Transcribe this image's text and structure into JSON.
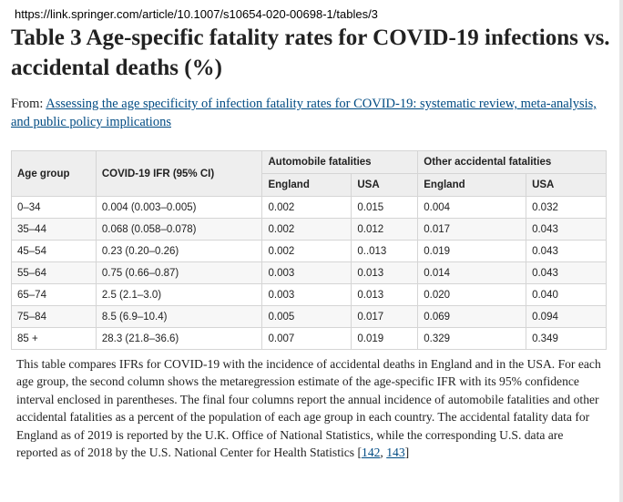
{
  "url": "https://link.springer.com/article/10.1007/s10654-020-00698-1/tables/3",
  "title": "Table 3 Age-specific fatality rates for COVID-19 infections vs. accidental deaths (%)",
  "from": {
    "prefix": "From: ",
    "link_text": "Assessing the age specificity of infection fatality rates for COVID-19: systematic review, meta-analysis, and public policy implications"
  },
  "table": {
    "headers": {
      "age_group": "Age group",
      "ifr": "COVID-19 IFR (95% CI)",
      "auto": "Automobile fatalities",
      "other": "Other accidental fatalities",
      "england": "England",
      "usa": "USA"
    },
    "rows": [
      [
        "0–34",
        "0.004 (0.003–0.005)",
        "0.002",
        "0.015",
        "0.004",
        "0.032"
      ],
      [
        "35–44",
        "0.068 (0.058–0.078)",
        "0.002",
        "0.012",
        "0.017",
        "0.043"
      ],
      [
        "45–54",
        "0.23 (0.20–0.26)",
        "0.002",
        "0..013",
        "0.019",
        "0.043"
      ],
      [
        "55–64",
        "0.75 (0.66–0.87)",
        "0.003",
        "0.013",
        "0.014",
        "0.043"
      ],
      [
        "65–74",
        "2.5 (2.1–3.0)",
        "0.003",
        "0.013",
        "0.020",
        "0.040"
      ],
      [
        "75–84",
        "8.5 (6.9–10.4)",
        "0.005",
        "0.017",
        "0.069",
        "0.094"
      ],
      [
        "85 +",
        "28.3 (21.8–36.6)",
        "0.007",
        "0.019",
        "0.329",
        "0.349"
      ]
    ]
  },
  "note": {
    "text": "This table compares IFRs for COVID-19 with the incidence of accidental deaths in England and in the USA. For each age group, the second column shows the metaregression estimate of the age-specific IFR with its 95% confidence interval enclosed in parentheses. The final four columns report the annual incidence of automobile fatalities and other accidental fatalities as a percent of the population of each age group in each country. The accidental fatality data for England as of 2019 is reported by the U.K. Office of National Statistics, while the corresponding U.S. data are reported as of 2018 by the U.S. National Center for Health Statistics ",
    "open": "[",
    "ref1": "142",
    "sep": ", ",
    "ref2": "143",
    "close": "]"
  }
}
